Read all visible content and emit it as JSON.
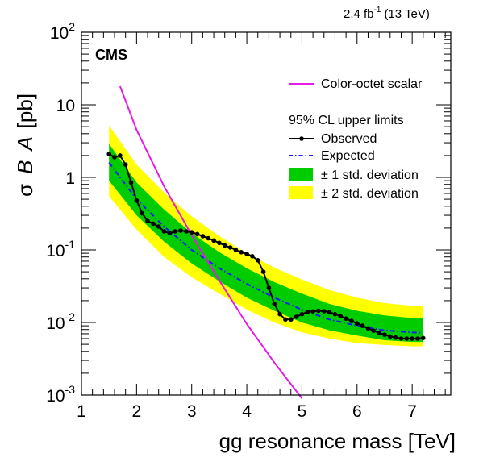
{
  "chart_data": {
    "type": "line",
    "title": "",
    "lumi_label": "2.4 fb",
    "lumi_superscript": "-1",
    "energy_label": "(13 TeV)",
    "experiment_label": "CMS",
    "xlabel": "gg resonance mass [TeV]",
    "ylabel": "σ B A [pb]",
    "ylabel_parts": [
      "σ",
      "B",
      "A",
      "[pb]"
    ],
    "xlim": [
      1,
      7.7
    ],
    "ylim": [
      0.001,
      100
    ],
    "yscale": "log",
    "x_ticks": [
      1,
      2,
      3,
      4,
      5,
      6,
      7
    ],
    "x_tick_labels": [
      "1",
      "2",
      "3",
      "4",
      "5",
      "6",
      "7"
    ],
    "y_ticks": [
      0.001,
      0.01,
      0.1,
      1,
      10,
      100
    ],
    "y_tick_base": "10",
    "y_tick_exponents": [
      "-3",
      "-2",
      "-1",
      "",
      "",
      "2"
    ],
    "y_tick_plain": [
      "",
      "",
      "",
      "1",
      "10",
      ""
    ],
    "legend_heading": "95% CL upper limits",
    "legend_placement": "top-right",
    "colors": {
      "theory": "#e61ae6",
      "observed": "#000000",
      "expected": "#1a1aff",
      "band1": "#00cc00",
      "band2": "#ffff00"
    },
    "series": [
      {
        "name": "Color-octet scalar",
        "style": "solid magenta line",
        "x": [
          1.7,
          2.0,
          2.5,
          3.0,
          3.5,
          4.0,
          4.5,
          5.0
        ],
        "values": [
          18,
          4.5,
          0.75,
          0.16,
          0.038,
          0.0095,
          0.0028,
          0.0009
        ]
      },
      {
        "name": "Observed",
        "style": "black line with markers",
        "x": [
          1.5,
          1.6,
          1.7,
          1.8,
          1.9,
          2.0,
          2.1,
          2.2,
          2.3,
          2.4,
          2.5,
          2.6,
          2.7,
          2.8,
          2.9,
          3.0,
          3.1,
          3.2,
          3.3,
          3.4,
          3.5,
          3.6,
          3.7,
          3.8,
          3.9,
          4.0,
          4.1,
          4.2,
          4.3,
          4.4,
          4.5,
          4.6,
          4.7,
          4.8,
          4.9,
          5.0,
          5.1,
          5.2,
          5.3,
          5.4,
          5.5,
          5.6,
          5.7,
          5.8,
          5.9,
          6.0,
          6.1,
          6.2,
          6.3,
          6.4,
          6.5,
          6.6,
          6.7,
          6.8,
          6.9,
          7.0,
          7.1,
          7.2
        ],
        "values": [
          2.1,
          1.9,
          2.0,
          1.5,
          0.85,
          0.48,
          0.32,
          0.25,
          0.23,
          0.21,
          0.18,
          0.17,
          0.18,
          0.185,
          0.18,
          0.175,
          0.165,
          0.155,
          0.145,
          0.135,
          0.125,
          0.115,
          0.108,
          0.1,
          0.093,
          0.088,
          0.082,
          0.072,
          0.05,
          0.03,
          0.018,
          0.013,
          0.011,
          0.011,
          0.012,
          0.013,
          0.014,
          0.0142,
          0.0145,
          0.0143,
          0.0138,
          0.013,
          0.0122,
          0.0113,
          0.0105,
          0.0097,
          0.009,
          0.0083,
          0.0077,
          0.0072,
          0.0068,
          0.0064,
          0.0062,
          0.006,
          0.006,
          0.006,
          0.006,
          0.0061
        ]
      },
      {
        "name": "Expected",
        "style": "blue dash-dotted line",
        "x": [
          1.5,
          2.0,
          2.5,
          3.0,
          3.5,
          4.0,
          4.5,
          5.0,
          5.5,
          6.0,
          6.5,
          7.0,
          7.2
        ],
        "values": [
          1.6,
          0.5,
          0.21,
          0.1,
          0.056,
          0.034,
          0.022,
          0.015,
          0.011,
          0.009,
          0.0078,
          0.0073,
          0.0072
        ]
      }
    ],
    "bands": [
      {
        "name": "± 1 std. deviation",
        "x": [
          1.5,
          2.0,
          2.5,
          3.0,
          3.5,
          4.0,
          4.5,
          5.0,
          5.5,
          6.0,
          6.5,
          7.0,
          7.2
        ],
        "lower": [
          0.9,
          0.3,
          0.13,
          0.065,
          0.037,
          0.022,
          0.0145,
          0.01,
          0.0078,
          0.0066,
          0.0057,
          0.0054,
          0.0054
        ],
        "upper": [
          2.9,
          0.85,
          0.36,
          0.17,
          0.093,
          0.056,
          0.036,
          0.025,
          0.018,
          0.0145,
          0.0125,
          0.0115,
          0.0115
        ]
      },
      {
        "name": "± 2 std. deviation",
        "x": [
          1.5,
          2.0,
          2.5,
          3.0,
          3.5,
          4.0,
          4.5,
          5.0,
          5.5,
          6.0,
          6.5,
          7.0,
          7.2
        ],
        "lower": [
          0.55,
          0.19,
          0.08,
          0.042,
          0.025,
          0.015,
          0.01,
          0.0073,
          0.006,
          0.0052,
          0.0049,
          0.0047,
          0.0047
        ],
        "upper": [
          5.2,
          1.5,
          0.62,
          0.29,
          0.155,
          0.09,
          0.057,
          0.039,
          0.028,
          0.022,
          0.0185,
          0.017,
          0.017
        ]
      }
    ]
  }
}
